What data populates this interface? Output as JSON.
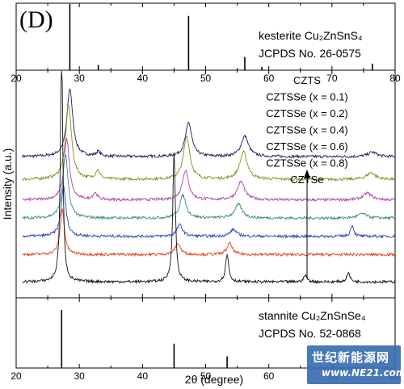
{
  "panel_label": "(D)",
  "watermark": {
    "line1": "世纪新能源网",
    "line2": "www.NE21.com"
  },
  "colors": {
    "CZTS": "#1a1a5e",
    "CZTSSe (x = 0.1)": "#8a8a1a",
    "CZTSSe (x = 0.2)": "#b040b0",
    "CZTSSe (x = 0.4)": "#3a8a80",
    "CZTSSe (x = 0.6)": "#2840c0",
    "CZTSSe (x = 0.8)": "#e04020",
    "CZTSe": "#111111"
  },
  "chart_data": [
    {
      "type": "bar",
      "panel": "top",
      "annotation_lines": [
        "kesterite Cu₂ZnSnS₄",
        "JCPDS No. 26-0575"
      ],
      "xlim": [
        20,
        80
      ],
      "x_ticks": [
        20,
        30,
        40,
        50,
        60,
        70,
        80
      ],
      "x": [
        28.5,
        33.0,
        47.3,
        56.2,
        58.9,
        76.4
      ],
      "values": [
        1.0,
        0.08,
        0.82,
        0.2,
        0.05,
        0.1
      ]
    },
    {
      "type": "line",
      "panel": "middle",
      "ylabel": "Intensity (a.u.)",
      "xlim": [
        20,
        80
      ],
      "legend_placement": "top-center",
      "legend": [
        "CZTS",
        "CZTSSe (x = 0.1)",
        "CZTSSe (x = 0.2)",
        "CZTSSe (x = 0.4)",
        "CZTSSe (x = 0.6)",
        "CZTSSe (x = 0.8)",
        "CZTSe"
      ],
      "series": [
        {
          "name": "CZTS",
          "baseline": 0.62,
          "peaks": [
            [
              28.5,
              0.3,
              0.55
            ],
            [
              33.0,
              0.02,
              0.4
            ],
            [
              47.3,
              0.15,
              0.6
            ],
            [
              56.2,
              0.09,
              0.7
            ],
            [
              76.4,
              0.02,
              0.8
            ]
          ]
        },
        {
          "name": "CZTSSe (x = 0.1)",
          "baseline": 0.52,
          "peaks": [
            [
              28.3,
              0.33,
              0.55
            ],
            [
              32.9,
              0.04,
              0.4
            ],
            [
              47.0,
              0.19,
              0.6
            ],
            [
              56.0,
              0.12,
              0.7
            ],
            [
              76.2,
              0.03,
              0.8
            ]
          ]
        },
        {
          "name": "CZTSSe (x = 0.2)",
          "baseline": 0.43,
          "peaks": [
            [
              28.0,
              0.27,
              0.5
            ],
            [
              32.5,
              0.03,
              0.4
            ],
            [
              46.8,
              0.13,
              0.6
            ],
            [
              55.6,
              0.08,
              0.7
            ],
            [
              75.6,
              0.03,
              0.8
            ]
          ]
        },
        {
          "name": "CZTSSe (x = 0.4)",
          "baseline": 0.35,
          "peaks": [
            [
              27.8,
              0.28,
              0.5
            ],
            [
              46.4,
              0.1,
              0.6
            ],
            [
              55.2,
              0.06,
              0.7
            ],
            [
              74.8,
              0.02,
              0.8
            ]
          ]
        },
        {
          "name": "CZTSSe (x = 0.6)",
          "baseline": 0.27,
          "peaks": [
            [
              27.5,
              0.22,
              0.45
            ],
            [
              45.9,
              0.05,
              0.55
            ],
            [
              54.4,
              0.03,
              0.6
            ],
            [
              73.2,
              0.05,
              0.3
            ]
          ]
        },
        {
          "name": "CZTSSe (x = 0.8)",
          "baseline": 0.19,
          "peaks": [
            [
              27.3,
              0.2,
              0.4
            ],
            [
              45.6,
              0.05,
              0.5
            ],
            [
              53.8,
              0.05,
              0.5
            ]
          ]
        },
        {
          "name": "CZTSe",
          "baseline": 0.07,
          "peaks": [
            [
              27.2,
              1.05,
              0.22
            ],
            [
              45.0,
              0.57,
              0.25
            ],
            [
              53.4,
              0.12,
              0.3
            ],
            [
              65.8,
              0.03,
              0.3
            ],
            [
              72.6,
              0.04,
              0.3
            ]
          ]
        }
      ]
    },
    {
      "type": "bar",
      "panel": "bottom",
      "annotation_lines": [
        "stannite Cu₂ZnSnSe₄",
        "JCPDS No. 52-0868"
      ],
      "xlabel": "2θ (degree)",
      "xlim": [
        20,
        80
      ],
      "x_ticks": [
        20,
        30,
        40,
        50,
        60,
        70,
        80
      ],
      "x": [
        27.2,
        45.0,
        53.4
      ],
      "values": [
        1.0,
        0.42,
        0.2
      ]
    }
  ]
}
